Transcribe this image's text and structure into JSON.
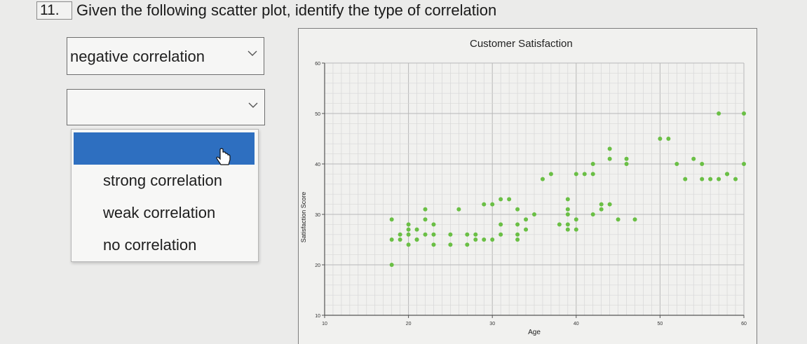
{
  "question": {
    "number": "11.",
    "text": "Given the following scatter plot, identify the type of correlation"
  },
  "dropdowns": [
    {
      "selected": "negative correlation",
      "icon": "chevron-down-icon"
    },
    {
      "selected": "",
      "icon": "chevron-down-icon",
      "open": true,
      "options": [
        "",
        "strong correlation",
        "weak correlation",
        "no correlation"
      ],
      "highlighted_index": 0
    }
  ],
  "colors": {
    "highlight": "#2e6fc0",
    "points": "#6abf45"
  },
  "chart_data": {
    "type": "scatter",
    "title": "Customer Satisfaction",
    "xlabel": "Age",
    "ylabel": "Satisfaction Score",
    "xlim": [
      10,
      60
    ],
    "ylim": [
      10,
      60
    ],
    "xticks": [
      "10",
      "20",
      "30",
      "40",
      "50",
      "60"
    ],
    "yticks": [
      "10",
      "20",
      "30",
      "40",
      "50",
      "60"
    ],
    "grid": true,
    "series": [
      {
        "points": [
          [
            18,
            20
          ],
          [
            18,
            25
          ],
          [
            18,
            29
          ],
          [
            19,
            25
          ],
          [
            19,
            26
          ],
          [
            20,
            27
          ],
          [
            20,
            26
          ],
          [
            20,
            24
          ],
          [
            20,
            28
          ],
          [
            21,
            25
          ],
          [
            21,
            27
          ],
          [
            21,
            25
          ],
          [
            22,
            26
          ],
          [
            22,
            29
          ],
          [
            22,
            31
          ],
          [
            23,
            24
          ],
          [
            23,
            26
          ],
          [
            23,
            28
          ],
          [
            25,
            24
          ],
          [
            25,
            26
          ],
          [
            26,
            31
          ],
          [
            27,
            24
          ],
          [
            27,
            26
          ],
          [
            28,
            25
          ],
          [
            28,
            26
          ],
          [
            29,
            25
          ],
          [
            29,
            32
          ],
          [
            30,
            25
          ],
          [
            30,
            32
          ],
          [
            31,
            26
          ],
          [
            31,
            28
          ],
          [
            31,
            33
          ],
          [
            32,
            33
          ],
          [
            33,
            25
          ],
          [
            33,
            26
          ],
          [
            33,
            28
          ],
          [
            33,
            31
          ],
          [
            34,
            27
          ],
          [
            34,
            29
          ],
          [
            35,
            30
          ],
          [
            36,
            37
          ],
          [
            37,
            38
          ],
          [
            38,
            28
          ],
          [
            39,
            27
          ],
          [
            39,
            28
          ],
          [
            39,
            30
          ],
          [
            39,
            31
          ],
          [
            39,
            33
          ],
          [
            40,
            27
          ],
          [
            40,
            29
          ],
          [
            40,
            38
          ],
          [
            41,
            38
          ],
          [
            42,
            38
          ],
          [
            42,
            40
          ],
          [
            42,
            30
          ],
          [
            43,
            31
          ],
          [
            43,
            32
          ],
          [
            44,
            32
          ],
          [
            44,
            41
          ],
          [
            44,
            43
          ],
          [
            45,
            29
          ],
          [
            46,
            40
          ],
          [
            46,
            41
          ],
          [
            47,
            29
          ],
          [
            50,
            45
          ],
          [
            51,
            45
          ],
          [
            52,
            40
          ],
          [
            53,
            37
          ],
          [
            54,
            41
          ],
          [
            55,
            40
          ],
          [
            55,
            37
          ],
          [
            56,
            37
          ],
          [
            57,
            37
          ],
          [
            57,
            50
          ],
          [
            58,
            38
          ],
          [
            58,
            38
          ],
          [
            59,
            37
          ],
          [
            60,
            40
          ],
          [
            60,
            50
          ]
        ]
      }
    ]
  }
}
